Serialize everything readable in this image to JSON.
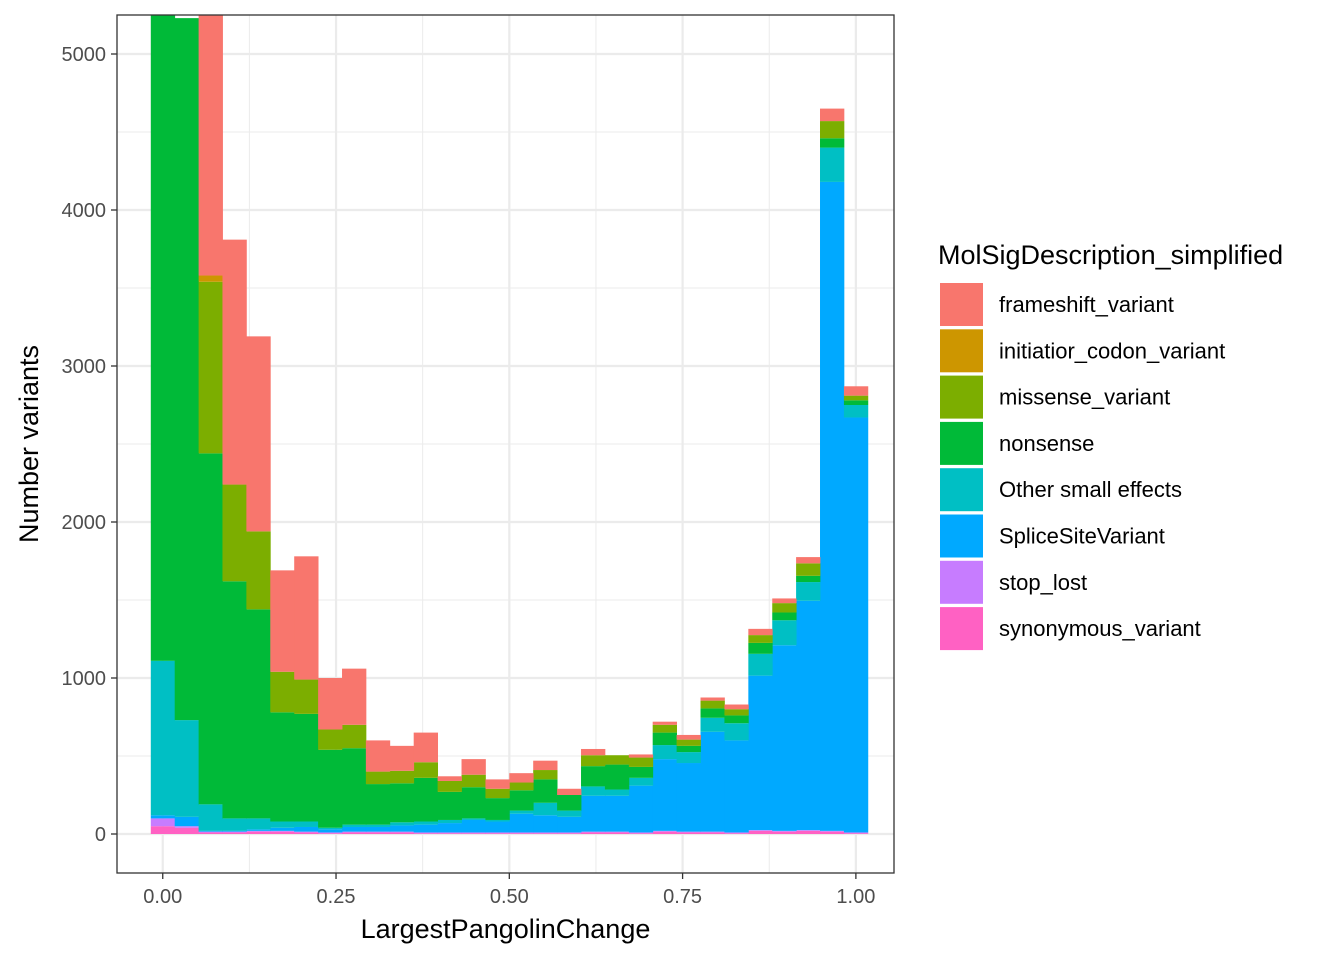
{
  "chart_data": {
    "type": "bar",
    "stacked": true,
    "xlabel": "LargestPangolinChange",
    "ylabel": "Number variants",
    "x_ticks": [
      "0.00",
      "0.25",
      "0.50",
      "0.75",
      "1.00"
    ],
    "y_ticks": [
      "0",
      "1000",
      "2000",
      "3000",
      "4000",
      "5000"
    ],
    "xlim": [
      -0.066,
      1.055
    ],
    "ylim": [
      -250,
      5250
    ],
    "grid": true,
    "legend": {
      "title": "MolSigDescription_simplified",
      "position": "right"
    },
    "bin_width": 0.0345,
    "bin_centers": [
      0.0,
      0.0345,
      0.069,
      0.1034,
      0.1379,
      0.1724,
      0.2069,
      0.2414,
      0.2759,
      0.3103,
      0.3448,
      0.3793,
      0.4138,
      0.4483,
      0.4828,
      0.5172,
      0.5517,
      0.5862,
      0.6207,
      0.6552,
      0.6897,
      0.7241,
      0.7586,
      0.7931,
      0.8276,
      0.8621,
      0.8966,
      0.931,
      0.9655,
      1.0
    ],
    "series": [
      {
        "name": "synonymous_variant",
        "color": "#FF61C3",
        "values": [
          50,
          40,
          10,
          10,
          15,
          15,
          10,
          5,
          10,
          10,
          10,
          5,
          5,
          5,
          5,
          5,
          5,
          5,
          10,
          10,
          5,
          15,
          10,
          10,
          5,
          20,
          15,
          20,
          15,
          5
        ]
      },
      {
        "name": "stop_lost",
        "color": "#C77CFF",
        "values": [
          50,
          10,
          5,
          5,
          5,
          5,
          5,
          5,
          5,
          5,
          5,
          5,
          5,
          5,
          5,
          5,
          5,
          5,
          5,
          5,
          5,
          5,
          5,
          5,
          5,
          5,
          5,
          5,
          5,
          5
        ]
      },
      {
        "name": "SpliceSiteVariant",
        "color": "#00A9FF",
        "values": [
          20,
          60,
          5,
          5,
          10,
          20,
          30,
          20,
          30,
          30,
          40,
          50,
          60,
          80,
          70,
          120,
          110,
          100,
          230,
          230,
          300,
          460,
          440,
          640,
          590,
          990,
          1190,
          1470,
          4160,
          2660
        ]
      },
      {
        "name": "Other small effects",
        "color": "#00BFC4",
        "values": [
          990,
          620,
          170,
          80,
          70,
          40,
          35,
          10,
          15,
          15,
          20,
          20,
          20,
          10,
          10,
          20,
          80,
          40,
          60,
          40,
          50,
          90,
          70,
          90,
          110,
          140,
          160,
          120,
          220,
          80
        ]
      },
      {
        "name": "nonsense",
        "color": "#00BA38",
        "values": [
          4500,
          4500,
          2250,
          1520,
          1340,
          700,
          690,
          500,
          490,
          260,
          250,
          280,
          180,
          200,
          140,
          130,
          150,
          100,
          130,
          160,
          70,
          80,
          40,
          60,
          50,
          70,
          50,
          40,
          60,
          30
        ]
      },
      {
        "name": "missense_variant",
        "color": "#7CAE00",
        "values": [
          0,
          0,
          1100,
          620,
          500,
          260,
          220,
          130,
          150,
          80,
          80,
          100,
          70,
          80,
          60,
          50,
          60,
          0,
          70,
          60,
          60,
          50,
          40,
          50,
          40,
          50,
          60,
          80,
          110,
          30
        ]
      },
      {
        "name": "initiatior_codon_variant",
        "color": "#CD9600",
        "values": [
          0,
          0,
          40,
          0,
          0,
          0,
          0,
          0,
          0,
          0,
          0,
          0,
          0,
          0,
          0,
          0,
          0,
          0,
          0,
          0,
          0,
          0,
          0,
          0,
          0,
          0,
          0,
          0,
          0,
          0
        ]
      },
      {
        "name": "frameshift_variant",
        "color": "#F8766D",
        "values": [
          0,
          0,
          1930,
          1570,
          1250,
          650,
          790,
          330,
          360,
          200,
          160,
          190,
          30,
          100,
          60,
          60,
          60,
          40,
          40,
          0,
          20,
          20,
          30,
          20,
          30,
          40,
          30,
          40,
          80,
          60
        ]
      }
    ]
  }
}
